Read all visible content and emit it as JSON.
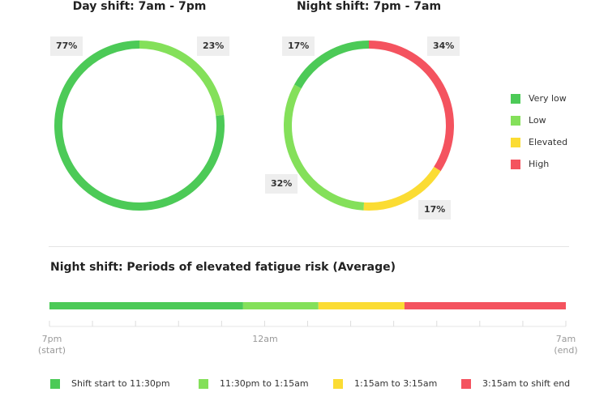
{
  "chart_data": [
    {
      "type": "pie",
      "variant": "donut",
      "title": "Day shift: 7am - 7pm",
      "slices": [
        {
          "label": "Low",
          "value": 23,
          "display": "23%",
          "color": "#84e05a"
        },
        {
          "label": "Very low",
          "value": 77,
          "display": "77%",
          "color": "#4cca57"
        }
      ]
    },
    {
      "type": "pie",
      "variant": "donut",
      "title": "Night shift: 7pm - 7am",
      "slices": [
        {
          "label": "High",
          "value": 34,
          "display": "34%",
          "color": "#f4535f"
        },
        {
          "label": "Elevated",
          "value": 17,
          "display": "17%",
          "color": "#fbdc33"
        },
        {
          "label": "Low",
          "value": 32,
          "display": "32%",
          "color": "#84e05a"
        },
        {
          "label": "Very low",
          "value": 17,
          "display": "17%",
          "color": "#4cca57"
        }
      ]
    },
    {
      "type": "bar",
      "variant": "timeline",
      "title": "Night shift: Periods of elevated fatigue risk (Average)",
      "x_start_hours": 0,
      "x_end_hours": 12,
      "segments": [
        {
          "label": "Shift start to 11:30pm",
          "start": 0,
          "end": 4.5,
          "color": "#4cca57"
        },
        {
          "label": "11:30pm to 1:15am",
          "start": 4.5,
          "end": 6.25,
          "color": "#84e05a"
        },
        {
          "label": "1:15am to 3:15am",
          "start": 6.25,
          "end": 8.25,
          "color": "#fbdc33"
        },
        {
          "label": "3:15am to shift end",
          "start": 8.25,
          "end": 12,
          "color": "#f4535f"
        }
      ],
      "tick_labels": [
        {
          "at": 0,
          "line1": "7pm",
          "line2": "(start)"
        },
        {
          "at": 5,
          "line1": "12am",
          "line2": ""
        },
        {
          "at": 12,
          "line1": "7am",
          "line2": "(end)"
        }
      ]
    }
  ],
  "legend": [
    {
      "label": "Very low",
      "color": "#4cca57"
    },
    {
      "label": "Low",
      "color": "#84e05a"
    },
    {
      "label": "Elevated",
      "color": "#fbdc33"
    },
    {
      "label": "High",
      "color": "#f4535f"
    }
  ]
}
